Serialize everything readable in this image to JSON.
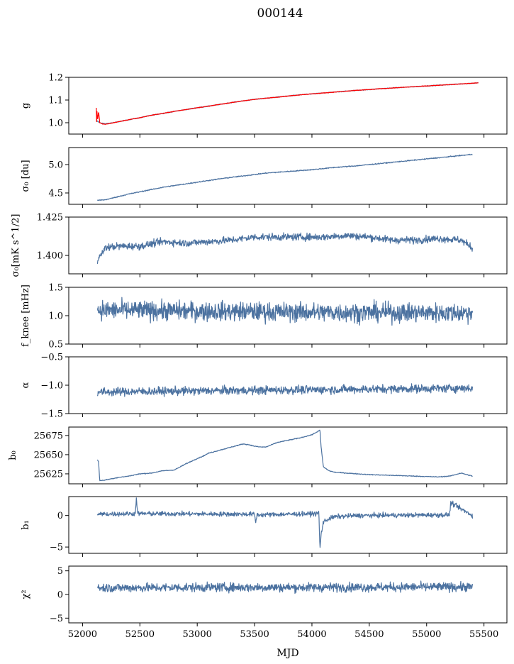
{
  "figure": {
    "title": "000144",
    "xlabel": "MJD"
  },
  "colors": {
    "series_blue": "#4c72a0",
    "series_red": "#ff0000"
  },
  "chart_data": [
    {
      "type": "line",
      "ylabel": "g",
      "xlim": [
        51880,
        55700
      ],
      "ylim": [
        0.95,
        1.2
      ],
      "yticks": [
        1.0,
        1.1,
        1.2
      ],
      "ytick_labels": [
        "1.0",
        "1.1",
        "1.2"
      ],
      "series": [
        {
          "color": "#4c72a0",
          "x": [
            52120,
            52150,
            52200,
            52300,
            52400,
            52500,
            52600,
            52700,
            52800,
            52900,
            53000,
            53100,
            53200,
            53300,
            53400,
            53500,
            53600,
            53700,
            53800,
            53900,
            54000,
            54100,
            54200,
            54300,
            54400,
            54500,
            54600,
            54700,
            54800,
            54900,
            55000,
            55100,
            55200,
            55300,
            55400,
            55450
          ],
          "y": [
            1.01,
            1.0,
            0.995,
            1.003,
            1.013,
            1.022,
            1.033,
            1.041,
            1.05,
            1.058,
            1.066,
            1.073,
            1.081,
            1.089,
            1.096,
            1.103,
            1.108,
            1.113,
            1.118,
            1.123,
            1.127,
            1.131,
            1.135,
            1.139,
            1.143,
            1.146,
            1.15,
            1.153,
            1.156,
            1.159,
            1.162,
            1.165,
            1.168,
            1.171,
            1.174,
            1.176
          ],
          "noise": 0.0015
        },
        {
          "color": "#ff0000",
          "x": [
            52120,
            52123,
            52125,
            52130,
            52140,
            52150,
            52170,
            52200,
            52300,
            52400,
            52500,
            52600,
            52700,
            52800,
            52900,
            53000,
            53100,
            53200,
            53300,
            53400,
            53500,
            53600,
            53700,
            53800,
            53900,
            54000,
            54100,
            54200,
            54300,
            54400,
            54500,
            54600,
            54700,
            54800,
            54900,
            55000,
            55100,
            55200,
            55300,
            55400,
            55450
          ],
          "y": [
            1.065,
            1.005,
            1.06,
            1.01,
            1.05,
            1.0,
            0.995,
            0.993,
            1.003,
            1.013,
            1.022,
            1.033,
            1.041,
            1.05,
            1.058,
            1.066,
            1.073,
            1.081,
            1.089,
            1.096,
            1.103,
            1.108,
            1.113,
            1.118,
            1.123,
            1.127,
            1.131,
            1.135,
            1.139,
            1.143,
            1.146,
            1.15,
            1.153,
            1.156,
            1.159,
            1.162,
            1.165,
            1.168,
            1.171,
            1.174,
            1.176
          ],
          "noise": 0.0012
        }
      ]
    },
    {
      "type": "line",
      "ylabel": "σ₀ [du]",
      "xlim": [
        51880,
        55700
      ],
      "ylim": [
        4.3,
        5.3
      ],
      "yticks": [
        4.5,
        5.0
      ],
      "ytick_labels": [
        "4.5",
        "5.0"
      ],
      "series": [
        {
          "color": "#4c72a0",
          "x": [
            52130,
            52200,
            52300,
            52400,
            52500,
            52600,
            52700,
            52800,
            52900,
            53000,
            53200,
            53400,
            53600,
            53800,
            54000,
            54200,
            54400,
            54600,
            54800,
            55000,
            55200,
            55400
          ],
          "y": [
            4.37,
            4.38,
            4.43,
            4.48,
            4.52,
            4.56,
            4.6,
            4.63,
            4.66,
            4.69,
            4.75,
            4.8,
            4.85,
            4.88,
            4.91,
            4.95,
            4.98,
            5.02,
            5.06,
            5.1,
            5.14,
            5.18
          ],
          "noise": 0.008
        }
      ]
    },
    {
      "type": "line",
      "ylabel": "σ₀[mK s^1/2]",
      "xlim": [
        51880,
        55700
      ],
      "ylim": [
        1.388,
        1.425
      ],
      "yticks": [
        1.4,
        1.425
      ],
      "ytick_labels": [
        "1.400",
        "1.425"
      ],
      "series": [
        {
          "color": "#4c72a0",
          "x": [
            52130,
            52150,
            52200,
            52300,
            52500,
            52700,
            52900,
            53100,
            53300,
            53500,
            53700,
            53900,
            54100,
            54300,
            54500,
            54700,
            54900,
            55100,
            55300,
            55400
          ],
          "y": [
            1.397,
            1.399,
            1.405,
            1.406,
            1.406,
            1.409,
            1.408,
            1.409,
            1.41,
            1.412,
            1.412,
            1.412,
            1.412,
            1.413,
            1.412,
            1.41,
            1.41,
            1.411,
            1.41,
            1.405
          ],
          "noise": 0.0022
        }
      ]
    },
    {
      "type": "line",
      "ylabel": "f_knee [mHz]",
      "xlim": [
        51880,
        55700
      ],
      "ylim": [
        0.5,
        1.5
      ],
      "yticks": [
        0.5,
        1.0,
        1.5
      ],
      "ytick_labels": [
        "0.5",
        "1.0",
        "1.5"
      ],
      "series": [
        {
          "color": "#4c72a0",
          "x": [
            52130,
            53000,
            54000,
            55400
          ],
          "y": [
            1.1,
            1.08,
            1.06,
            1.05
          ],
          "noise": 0.16
        }
      ]
    },
    {
      "type": "line",
      "ylabel": "α",
      "xlim": [
        51880,
        55700
      ],
      "ylim": [
        -1.5,
        -0.5
      ],
      "yticks": [
        -1.5,
        -1.0,
        -0.5
      ],
      "ytick_labels": [
        "−1.5",
        "−1.0",
        "−0.5"
      ],
      "series": [
        {
          "color": "#4c72a0",
          "x": [
            52130,
            53000,
            54000,
            55400
          ],
          "y": [
            -1.12,
            -1.1,
            -1.08,
            -1.05
          ],
          "noise": 0.07
        }
      ]
    },
    {
      "type": "line",
      "ylabel": "b₀",
      "xlim": [
        51880,
        55700
      ],
      "ylim": [
        25612,
        25686
      ],
      "yticks": [
        25625,
        25650,
        25675
      ],
      "ytick_labels": [
        "25625",
        "25650",
        "25675"
      ],
      "series": [
        {
          "color": "#4c72a0",
          "x": [
            52130,
            52140,
            52150,
            52200,
            52300,
            52400,
            52500,
            52600,
            52700,
            52800,
            52900,
            53000,
            53050,
            53100,
            53200,
            53300,
            53400,
            53450,
            53500,
            53550,
            53600,
            53700,
            53800,
            53900,
            54000,
            54060,
            54070,
            54080,
            54100,
            54150,
            54200,
            54300,
            54500,
            54700,
            54900,
            55100,
            55200,
            55300,
            55400
          ],
          "y": [
            25643,
            25641,
            25616,
            25617,
            25620,
            25622,
            25625,
            25626,
            25629,
            25630,
            25638,
            25645,
            25648,
            25652,
            25656,
            25660,
            25664,
            25663,
            25661,
            25660,
            25660,
            25666,
            25669,
            25672,
            25676,
            25681,
            25682,
            25660,
            25634,
            25629,
            25627,
            25626,
            25624,
            25623,
            25622,
            25621,
            25622,
            25626,
            25622
          ],
          "noise": 0.5
        }
      ]
    },
    {
      "type": "line",
      "ylabel": "b₁",
      "xlim": [
        51880,
        55700
      ],
      "ylim": [
        -6,
        3
      ],
      "yticks": [
        -5,
        0
      ],
      "ytick_labels": [
        "−5",
        "0"
      ],
      "series": [
        {
          "color": "#4c72a0",
          "x": [
            52130,
            52460,
            52470,
            52480,
            53500,
            53510,
            53520,
            54050,
            54060,
            54070,
            54080,
            54100,
            54150,
            54200,
            54400,
            55200,
            55210,
            55400
          ],
          "y": [
            0.2,
            0.3,
            3.0,
            0.3,
            0.2,
            -1.2,
            0.1,
            0.3,
            0.6,
            -5.4,
            -3.0,
            -1.0,
            -0.5,
            -0.2,
            0.0,
            0.1,
            2.0,
            0.0
          ],
          "noise": 0.35
        }
      ]
    },
    {
      "type": "line",
      "ylabel": "χ²",
      "xlim": [
        51880,
        55700
      ],
      "ylim": [
        -6,
        6
      ],
      "yticks": [
        -5,
        0,
        5
      ],
      "ytick_labels": [
        "−5",
        "0",
        "5"
      ],
      "xticks": [
        52000,
        52500,
        53000,
        53500,
        54000,
        54500,
        55000,
        55500
      ],
      "xtick_labels": [
        "52000",
        "52500",
        "53000",
        "53500",
        "54000",
        "54500",
        "55000",
        "55500"
      ],
      "series": [
        {
          "color": "#4c72a0",
          "x": [
            52130,
            53000,
            54000,
            55400
          ],
          "y": [
            1.4,
            1.5,
            1.5,
            1.6
          ],
          "noise": 0.9
        }
      ]
    }
  ]
}
